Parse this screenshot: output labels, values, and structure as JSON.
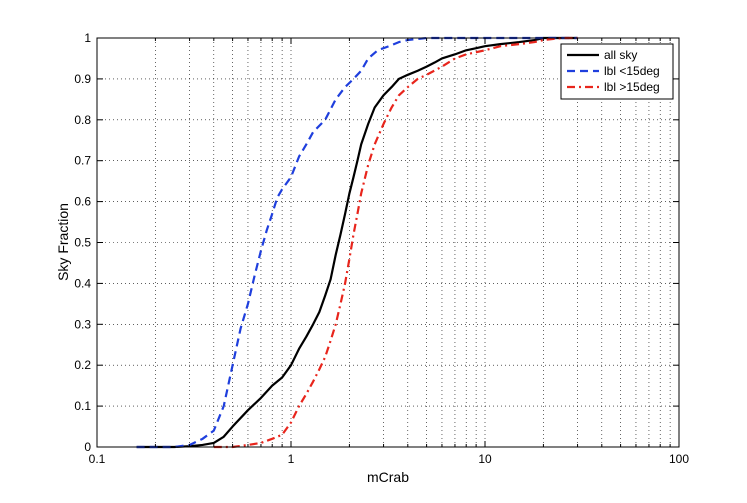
{
  "chart_data": {
    "type": "line",
    "title": "",
    "xlabel": "mCrab",
    "ylabel": "Sky Fraction",
    "x_scale": "log",
    "xlim": [
      0.1,
      100
    ],
    "ylim": [
      0,
      1
    ],
    "x_ticks": [
      "0.1",
      "1",
      "10",
      "100"
    ],
    "y_ticks": [
      "0",
      "0.1",
      "0.2",
      "0.3",
      "0.4",
      "0.5",
      "0.6",
      "0.7",
      "0.8",
      "0.9",
      "1"
    ],
    "grid": true,
    "legend_position": "top-right",
    "series": [
      {
        "name": "all sky",
        "color": "#000000",
        "dash": "solid",
        "x": [
          0.16,
          0.25,
          0.3,
          0.35,
          0.4,
          0.45,
          0.5,
          0.6,
          0.7,
          0.8,
          0.9,
          1.0,
          1.1,
          1.2,
          1.3,
          1.4,
          1.5,
          1.6,
          1.7,
          1.8,
          1.9,
          2.0,
          2.1,
          2.2,
          2.3,
          2.5,
          2.7,
          3.0,
          3.3,
          3.6,
          4.0,
          4.5,
          5.0,
          5.5,
          6.0,
          7.0,
          8.0,
          9.0,
          10,
          12,
          15,
          18,
          20,
          25,
          30
        ],
        "y": [
          0.0,
          0.0,
          0.002,
          0.005,
          0.01,
          0.025,
          0.05,
          0.09,
          0.12,
          0.15,
          0.17,
          0.2,
          0.24,
          0.27,
          0.3,
          0.33,
          0.37,
          0.41,
          0.47,
          0.52,
          0.57,
          0.62,
          0.66,
          0.7,
          0.74,
          0.79,
          0.83,
          0.86,
          0.88,
          0.9,
          0.91,
          0.92,
          0.93,
          0.94,
          0.95,
          0.96,
          0.97,
          0.975,
          0.98,
          0.985,
          0.99,
          0.995,
          1.0,
          1.0,
          1.0
        ]
      },
      {
        "name": "lbl <15deg",
        "color": "#1f3fdd",
        "dash": "dashed",
        "x": [
          0.16,
          0.25,
          0.3,
          0.35,
          0.4,
          0.45,
          0.5,
          0.55,
          0.6,
          0.65,
          0.7,
          0.75,
          0.8,
          0.85,
          0.9,
          1.0,
          1.1,
          1.2,
          1.3,
          1.5,
          1.7,
          1.9,
          2.1,
          2.3,
          2.5,
          2.8,
          3.2,
          3.6,
          4.0,
          5.0,
          7.0,
          10,
          15,
          20,
          30
        ],
        "y": [
          0.0,
          0.0,
          0.005,
          0.02,
          0.04,
          0.1,
          0.2,
          0.29,
          0.35,
          0.42,
          0.48,
          0.53,
          0.57,
          0.61,
          0.63,
          0.66,
          0.71,
          0.74,
          0.77,
          0.8,
          0.85,
          0.88,
          0.9,
          0.92,
          0.95,
          0.97,
          0.98,
          0.99,
          0.995,
          1.0,
          1.0,
          1.0,
          1.0,
          1.0,
          1.0
        ]
      },
      {
        "name": "lbl >15deg",
        "color": "#e8251c",
        "dash": "dashdot",
        "x": [
          0.4,
          0.5,
          0.6,
          0.7,
          0.8,
          0.9,
          1.0,
          1.1,
          1.2,
          1.3,
          1.4,
          1.5,
          1.6,
          1.7,
          1.8,
          1.9,
          2.0,
          2.1,
          2.2,
          2.3,
          2.5,
          2.7,
          3.0,
          3.3,
          3.6,
          4.0,
          4.5,
          5.0,
          6.0,
          7.0,
          8.0,
          10,
          12,
          15,
          18,
          20,
          25,
          30
        ],
        "y": [
          0.0,
          0.0,
          0.005,
          0.01,
          0.02,
          0.03,
          0.06,
          0.1,
          0.13,
          0.16,
          0.19,
          0.22,
          0.26,
          0.3,
          0.35,
          0.4,
          0.46,
          0.52,
          0.57,
          0.62,
          0.69,
          0.74,
          0.79,
          0.83,
          0.86,
          0.88,
          0.9,
          0.91,
          0.93,
          0.95,
          0.96,
          0.97,
          0.98,
          0.985,
          0.99,
          0.995,
          1.0,
          1.0
        ]
      }
    ]
  }
}
